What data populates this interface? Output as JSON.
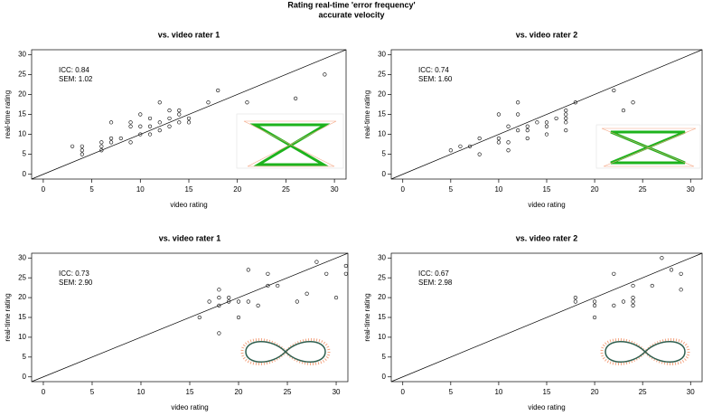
{
  "title": "Rating real-time 'error frequency'",
  "subtitle": "accurate velocity",
  "chart_data": [
    {
      "type": "scatter",
      "title": "vs. video rater 1",
      "xlabel": "video rating",
      "ylabel": "real-time rating",
      "annotations": [
        "ICC: 0.84",
        "SEM: 1.02"
      ],
      "x": [
        3,
        4,
        4,
        4,
        6,
        6,
        6,
        7,
        7,
        7,
        8,
        9,
        9,
        9,
        10,
        10,
        10,
        11,
        11,
        11,
        12,
        12,
        12,
        13,
        13,
        13,
        14,
        14,
        14,
        15,
        15,
        17,
        18,
        21,
        26,
        29
      ],
      "y": [
        7,
        5,
        7,
        6,
        6,
        7,
        8,
        8,
        9,
        13,
        9,
        8,
        12,
        13,
        10,
        12,
        15,
        10,
        12,
        14,
        11,
        13,
        18,
        12,
        14,
        16,
        13,
        15,
        16,
        13,
        14,
        18,
        21,
        18,
        19,
        25
      ],
      "xlim": [
        -1.2,
        31.2
      ],
      "ylim": [
        -1.2,
        31.2
      ],
      "xticks": [
        0,
        5,
        10,
        15,
        20,
        25,
        30
      ],
      "yticks": [
        0,
        5,
        10,
        15,
        20,
        25,
        30
      ]
    },
    {
      "type": "scatter",
      "title": "vs. video rater 2",
      "xlabel": "video rating",
      "ylabel": "real-time rating",
      "annotations": [
        "ICC: 0.74",
        "SEM: 1.60"
      ],
      "x": [
        5,
        6,
        7,
        8,
        8,
        10,
        10,
        10,
        11,
        11,
        11,
        12,
        12,
        12,
        13,
        13,
        13,
        14,
        15,
        15,
        15,
        16,
        17,
        17,
        17,
        17,
        17,
        18,
        22,
        23,
        24
      ],
      "y": [
        6,
        7,
        7,
        5,
        9,
        8,
        9,
        15,
        6,
        8,
        12,
        11,
        15,
        18,
        9,
        11,
        12,
        13,
        10,
        12,
        13,
        14,
        11,
        13,
        14,
        15,
        16,
        18,
        21,
        16,
        18
      ],
      "xlim": [
        -1.2,
        31.2
      ],
      "ylim": [
        -1.2,
        31.2
      ],
      "xticks": [
        0,
        5,
        10,
        15,
        20,
        25,
        30
      ],
      "yticks": [
        0,
        5,
        10,
        15,
        20,
        25,
        30
      ]
    },
    {
      "type": "scatter",
      "title": "vs. video rater 1",
      "xlabel": "video rating",
      "ylabel": "real-time rating",
      "annotations": [
        "ICC: 0.73",
        "SEM: 2.90"
      ],
      "x": [
        16,
        17,
        18,
        18,
        18,
        18,
        19,
        19,
        20,
        20,
        21,
        21,
        22,
        23,
        23,
        24,
        26,
        27,
        28,
        29,
        30,
        31,
        31
      ],
      "y": [
        15,
        19,
        11,
        18,
        20,
        22,
        19,
        20,
        15,
        19,
        19,
        27,
        18,
        23,
        26,
        23,
        19,
        21,
        29,
        26,
        20,
        26,
        28
      ],
      "xlim": [
        -1.2,
        31.2
      ],
      "ylim": [
        -1.2,
        31.2
      ],
      "xticks": [
        0,
        5,
        10,
        15,
        20,
        25,
        30
      ],
      "yticks": [
        0,
        5,
        10,
        15,
        20,
        25,
        30
      ]
    },
    {
      "type": "scatter",
      "title": "vs. video rater 2",
      "xlabel": "video rating",
      "ylabel": "real-time rating",
      "annotations": [
        "ICC: 0.67",
        "SEM: 2.98"
      ],
      "x": [
        18,
        18,
        20,
        20,
        20,
        22,
        22,
        23,
        24,
        24,
        24,
        24,
        26,
        27,
        28,
        29,
        29
      ],
      "y": [
        19,
        20,
        15,
        18,
        19,
        18,
        26,
        19,
        18,
        19,
        20,
        23,
        23,
        30,
        27,
        22,
        26
      ],
      "xlim": [
        -1.2,
        31.2
      ],
      "ylim": [
        -1.2,
        31.2
      ],
      "xticks": [
        0,
        5,
        10,
        15,
        20,
        25,
        30
      ],
      "yticks": [
        0,
        5,
        10,
        15,
        20,
        25,
        30
      ]
    }
  ]
}
